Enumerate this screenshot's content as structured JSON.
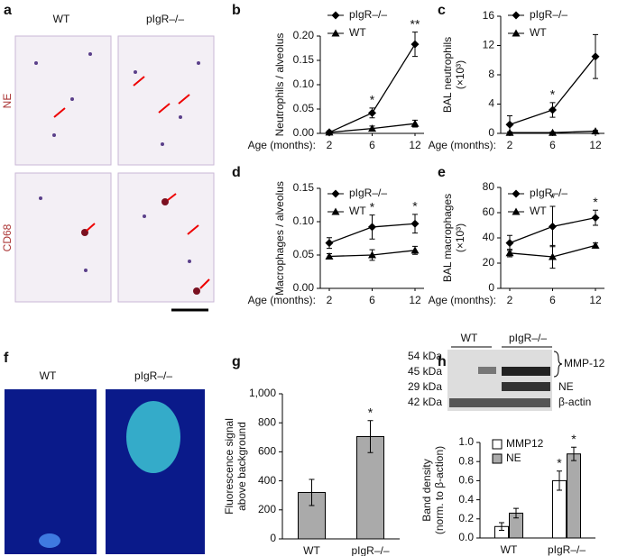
{
  "micrographs": {
    "label": "a",
    "columns": [
      "WT",
      "pIgR–/–"
    ],
    "rows": [
      "NE",
      "CD68"
    ]
  },
  "imaging": {
    "label": "f",
    "columns": [
      "WT",
      "pIgR–/–"
    ]
  },
  "blot": {
    "columns": [
      "WT",
      "pIgR–/–"
    ],
    "markers": [
      "54 kDa",
      "45 kDa",
      "29 kDa",
      "42 kDa"
    ],
    "bands": [
      "MMP-12",
      "NE",
      "β-actin"
    ]
  },
  "chart_data": [
    {
      "type": "line",
      "label": "b",
      "ylabel": [
        "Neutrophils / alveolus"
      ],
      "xlabel": "Age (months):",
      "categories": [
        "2",
        "6",
        "12"
      ],
      "legend": "upper left",
      "ylim": [
        0,
        0.2
      ],
      "yticks": [
        {
          "value": 0,
          "label": "0.00"
        },
        {
          "value": 0.05,
          "label": "0.05"
        },
        {
          "value": 0.1,
          "label": "0.10"
        },
        {
          "value": 0.15,
          "label": "0.15"
        },
        {
          "value": 0.2,
          "label": "0.20"
        }
      ],
      "significance": [
        null,
        "*",
        "**"
      ],
      "series": [
        {
          "name": "pIgR–/–",
          "marker": "diamond",
          "color": "#000",
          "values": [
            0.002,
            0.042,
            0.183
          ],
          "errors": [
            0.003,
            0.01,
            0.025
          ]
        },
        {
          "name": "WT",
          "marker": "triangle",
          "color": "#000",
          "values": [
            0.002,
            0.01,
            0.02
          ],
          "errors": [
            0.002,
            0.005,
            0.007
          ]
        }
      ]
    },
    {
      "type": "line",
      "label": "c",
      "ylabel": [
        "BAL neutrophils",
        "(×10³)"
      ],
      "xlabel": "Age (months):",
      "categories": [
        "2",
        "6",
        "12"
      ],
      "legend": "upper left",
      "ylim": [
        0,
        16
      ],
      "yticks": [
        0,
        4,
        8,
        12,
        16
      ],
      "significance": [
        null,
        "*",
        null
      ],
      "series": [
        {
          "name": "pIgR–/–",
          "marker": "diamond",
          "color": "#000",
          "values": [
            1.2,
            3.2,
            10.5
          ],
          "errors": [
            1.2,
            1,
            3
          ]
        },
        {
          "name": "WT",
          "marker": "triangle",
          "color": "#000",
          "values": [
            0.1,
            0.1,
            0.3
          ],
          "errors": [
            0.1,
            0.1,
            0.1
          ]
        }
      ]
    },
    {
      "type": "line",
      "label": "d",
      "ylabel": [
        "Macrophages / alveolus"
      ],
      "xlabel": "Age (months):",
      "categories": [
        "2",
        "6",
        "12"
      ],
      "legend": "upper left",
      "ylim": [
        0,
        0.15
      ],
      "yticks": [
        {
          "value": 0,
          "label": "0.00"
        },
        {
          "value": 0.05,
          "label": "0.05"
        },
        {
          "value": 0.1,
          "label": "0.10"
        },
        {
          "value": 0.15,
          "label": "0.15"
        }
      ],
      "significance": [
        null,
        "*",
        "*"
      ],
      "series": [
        {
          "name": "pIgR–/–",
          "marker": "diamond",
          "color": "#000",
          "values": [
            0.068,
            0.092,
            0.097
          ],
          "errors": [
            0.008,
            0.018,
            0.014
          ]
        },
        {
          "name": "WT",
          "marker": "triangle",
          "color": "#000",
          "values": [
            0.048,
            0.05,
            0.057
          ],
          "errors": [
            0.004,
            0.008,
            0.006
          ]
        }
      ]
    },
    {
      "type": "line",
      "label": "e",
      "ylabel": [
        "BAL macrophages",
        "(×10³)"
      ],
      "xlabel": "Age (months):",
      "categories": [
        "2",
        "6",
        "12"
      ],
      "legend": "upper left",
      "ylim": [
        0,
        80
      ],
      "yticks": [
        0,
        20,
        40,
        60,
        80
      ],
      "significance": [
        null,
        "*",
        "*"
      ],
      "series": [
        {
          "name": "pIgR–/–",
          "marker": "diamond",
          "color": "#000",
          "values": [
            36,
            49,
            56
          ],
          "errors": [
            6,
            16,
            6
          ]
        },
        {
          "name": "WT",
          "marker": "triangle",
          "color": "#000",
          "values": [
            28,
            25,
            34
          ],
          "errors": [
            3,
            9,
            2
          ]
        }
      ]
    },
    {
      "type": "bar",
      "label": "g",
      "ylabel": [
        "Fluorescence signal",
        "above background"
      ],
      "categories": [
        "WT",
        "pIgR–/–"
      ],
      "ylim": [
        0,
        1000
      ],
      "yticks": [
        0,
        200,
        400,
        600,
        800,
        {
          "value": 1000,
          "label": "1,000"
        }
      ],
      "significance": [
        null,
        "*"
      ],
      "series": [
        {
          "color": "#aaaaaa",
          "values": [
            320,
            705
          ],
          "errors": [
            90,
            110
          ]
        }
      ]
    },
    {
      "type": "bar",
      "label": "h",
      "ylabel": [
        "Band density",
        "(norm. to β-action)"
      ],
      "categories": [
        "WT",
        "pIgR–/–"
      ],
      "legend": "upper left",
      "ylim": [
        0,
        1
      ],
      "yticks": [
        {
          "value": 0,
          "label": "0.0"
        },
        {
          "value": 0.2,
          "label": "0.2"
        },
        {
          "value": 0.4,
          "label": "0.4"
        },
        {
          "value": 0.6,
          "label": "0.6"
        },
        {
          "value": 0.8,
          "label": "0.8"
        },
        {
          "value": 1,
          "label": "1.0"
        }
      ],
      "series": [
        {
          "name": "MMP12",
          "color": "#ffffff",
          "values": [
            0.12,
            0.6
          ],
          "errors": [
            0.04,
            0.1
          ],
          "significance": [
            null,
            "*"
          ]
        },
        {
          "name": "NE",
          "color": "#aaaaaa",
          "values": [
            0.26,
            0.88
          ],
          "errors": [
            0.05,
            0.07
          ],
          "significance": [
            null,
            "*"
          ]
        }
      ]
    }
  ]
}
